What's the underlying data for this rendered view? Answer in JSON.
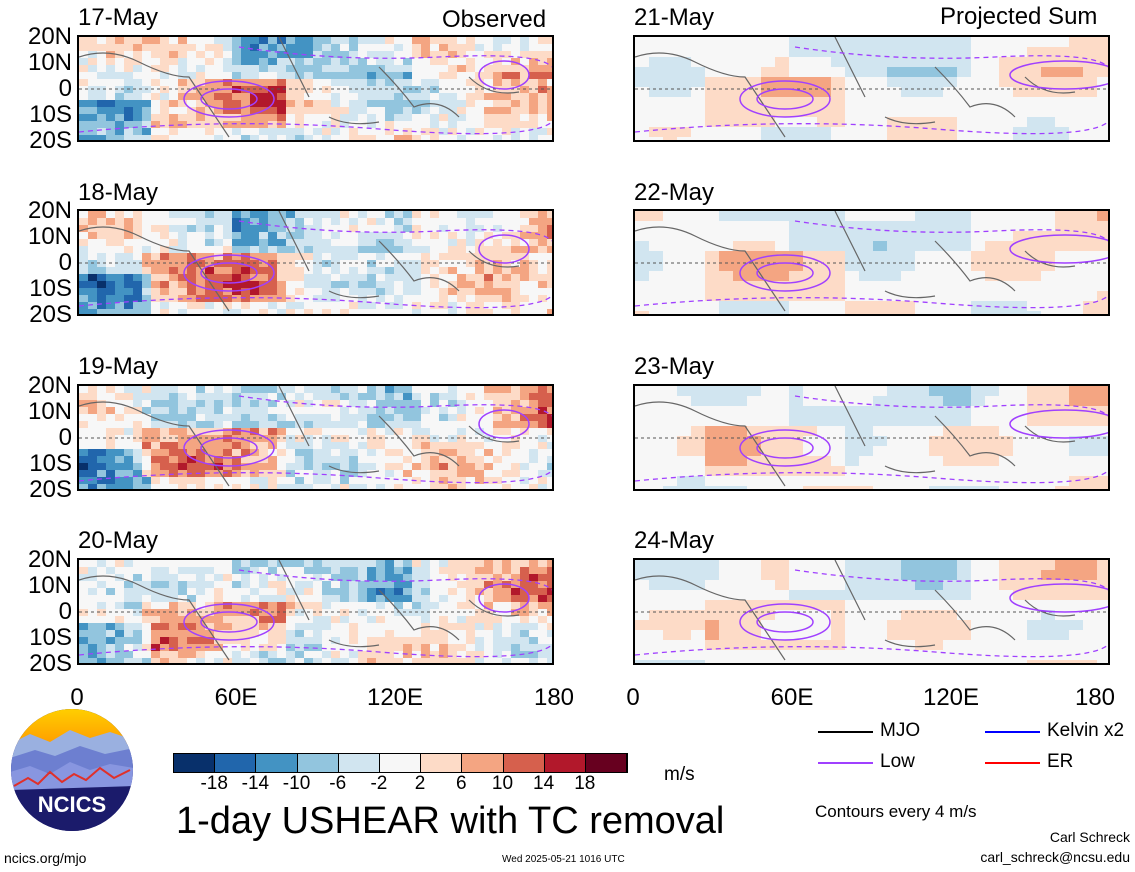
{
  "header": {
    "left_title": "Observed",
    "right_title": "Projected Sum"
  },
  "panels_left": [
    {
      "date": "17-May"
    },
    {
      "date": "18-May"
    },
    {
      "date": "19-May"
    },
    {
      "date": "20-May"
    }
  ],
  "panels_right": [
    {
      "date": "21-May"
    },
    {
      "date": "22-May"
    },
    {
      "date": "23-May"
    },
    {
      "date": "24-May"
    }
  ],
  "y_labels": [
    "20N",
    "10N",
    "0",
    "10S",
    "20S"
  ],
  "x_labels": [
    "0",
    "60E",
    "120E",
    "180"
  ],
  "colorbar": {
    "ticks": [
      "-18",
      "-14",
      "-10",
      "-6",
      "-2",
      "2",
      "6",
      "10",
      "14",
      "18"
    ],
    "colors": [
      "#08306b",
      "#2166ac",
      "#4393c3",
      "#92c5de",
      "#d1e5f0",
      "#f7f7f7",
      "#fddbc7",
      "#f4a582",
      "#d6604d",
      "#b2182b",
      "#67001f"
    ],
    "unit": "m/s"
  },
  "legend": {
    "mjo": "MJO",
    "kelvin": "Kelvin x2",
    "low": "Low",
    "er": "ER",
    "contours_note": "Contours every 4 m/s",
    "colors": {
      "mjo": "#000000",
      "kelvin": "#0000ff",
      "low": "#a040ff",
      "er": "#ff0000"
    }
  },
  "logo": {
    "text": "NCICS"
  },
  "title": "1-day USHEAR with TC removal",
  "footer": {
    "left": "ncics.org/mjo",
    "center": "Wed 2025-05-21 1016 UTC",
    "author": "Carl Schreck",
    "email": "carl_schreck@ncsu.edu"
  }
}
